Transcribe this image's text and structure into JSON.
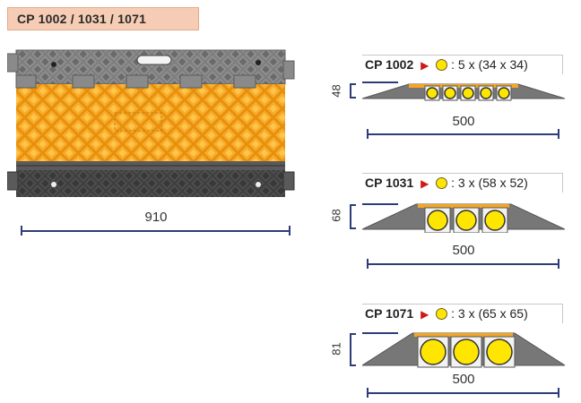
{
  "title": "CP 1002 / 1031 / 1071",
  "main_view": {
    "width_label": "910"
  },
  "products": [
    {
      "model": "CP 1002",
      "sep": ":",
      "channels": "5 x (34 x 34)",
      "height_label": "48",
      "length_label": "500",
      "channel_count": 5
    },
    {
      "model": "CP 1031",
      "sep": ":",
      "channels": "3 x (58 x 52)",
      "height_label": "68",
      "length_label": "500",
      "channel_count": 3
    },
    {
      "model": "CP 1071",
      "sep": ":",
      "channels": "3 x (65 x 65)",
      "height_label": "81",
      "length_label": "500",
      "channel_count": 3
    }
  ],
  "colors": {
    "dimension_line": "#2e3d78",
    "title_fill": "#f6cdb4",
    "ramp_gray": "#6e6e6e",
    "lid_orange": "#f5a623",
    "channel_yellow": "#ffe600",
    "arrow_red": "#d01a1a"
  },
  "icons": [
    "red-triangle-arrow-icon",
    "yellow-circle-icon"
  ]
}
